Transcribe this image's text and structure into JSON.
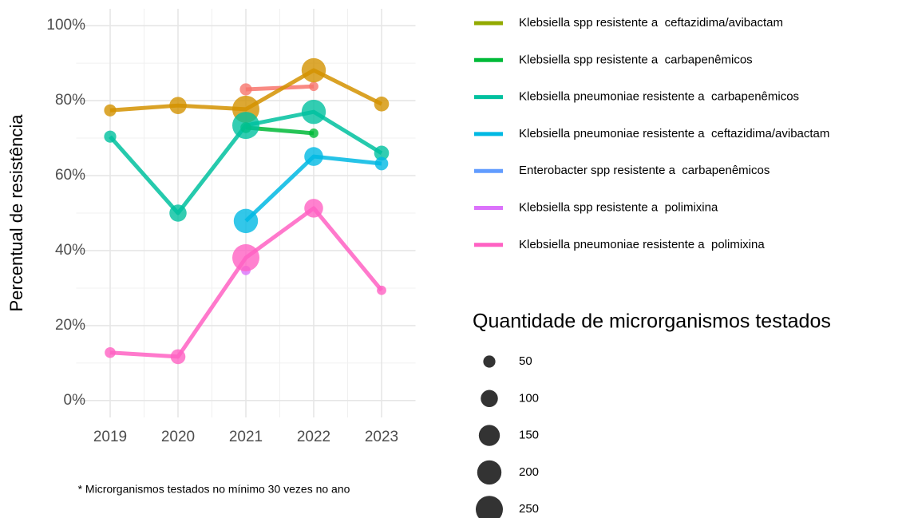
{
  "chart_data": {
    "type": "bubble-line",
    "y_label": "Percentual de resistência",
    "size_legend_title": "Quantidade de microrganismos testados",
    "footnote": "* Microrganismos testados no mínimo 30 vezes no ano",
    "x": [
      2019,
      2020,
      2021,
      2022,
      2023
    ],
    "xlim": [
      2018.5,
      2023.5
    ],
    "xticks": [
      2019,
      2020,
      2021,
      2022,
      2023
    ],
    "ylim": [
      -4.5,
      104.5
    ],
    "yticks": [
      {
        "value": 0,
        "label": "0%"
      },
      {
        "value": 20,
        "label": "20%"
      },
      {
        "value": 40,
        "label": "40%"
      },
      {
        "value": 60,
        "label": "60%"
      },
      {
        "value": 80,
        "label": "80%"
      },
      {
        "value": 100,
        "label": "100%"
      }
    ],
    "grid": true,
    "size_legend": [
      50,
      100,
      150,
      200,
      250
    ],
    "series": [
      {
        "color": "#F8766D",
        "values": [
          null,
          null,
          83.0,
          83.8,
          null
        ],
        "sizes": [
          null,
          null,
          50,
          30,
          null
        ]
      },
      {
        "color": "#D39200",
        "values": [
          77.4,
          78.7,
          77.7,
          88.1,
          79.1
        ],
        "sizes": [
          50,
          100,
          250,
          200,
          75
        ]
      },
      {
        "name": "Klebsiella spp resistente a  ceftazidima/avibactam",
        "color": "#93AA00",
        "values": [
          null,
          null,
          null,
          null,
          null
        ],
        "sizes": [
          null,
          null,
          null,
          null,
          null
        ]
      },
      {
        "name": "Klebsiella spp resistente a  carbapenêmicos",
        "color": "#00BA38",
        "values": [
          null,
          null,
          72.8,
          71.3,
          null
        ],
        "sizes": [
          null,
          null,
          40,
          30,
          null
        ]
      },
      {
        "name": "Klebsiella pneumoniae resistente a  carbapenêmicos",
        "color": "#00C19F",
        "values": [
          70.4,
          50.0,
          73.4,
          77.0,
          66.0
        ],
        "sizes": [
          50,
          100,
          250,
          200,
          75
        ]
      },
      {
        "name": "Klebsiella pneumoniae resistente a  ceftazidima/avibactam",
        "color": "#00B9E3",
        "values": [
          null,
          null,
          47.9,
          65.1,
          63.2
        ],
        "sizes": [
          null,
          null,
          200,
          120,
          60
        ]
      },
      {
        "name": "Enterobacter spp resistente a  carbapenêmicos",
        "color": "#619CFF",
        "values": [
          null,
          null,
          null,
          null,
          null
        ],
        "sizes": [
          null,
          null,
          null,
          null,
          null
        ]
      },
      {
        "name": "Klebsiella spp resistente a  polimixina",
        "color": "#DB72FB",
        "values": [
          null,
          null,
          34.7,
          null,
          null
        ],
        "sizes": [
          null,
          null,
          30,
          null,
          null
        ]
      },
      {
        "name": "Klebsiella pneumoniae resistente a  polimixina",
        "color": "#FF61C3",
        "values": [
          12.8,
          11.7,
          38.1,
          51.3,
          29.4
        ],
        "sizes": [
          40,
          75,
          250,
          120,
          30
        ]
      }
    ]
  }
}
